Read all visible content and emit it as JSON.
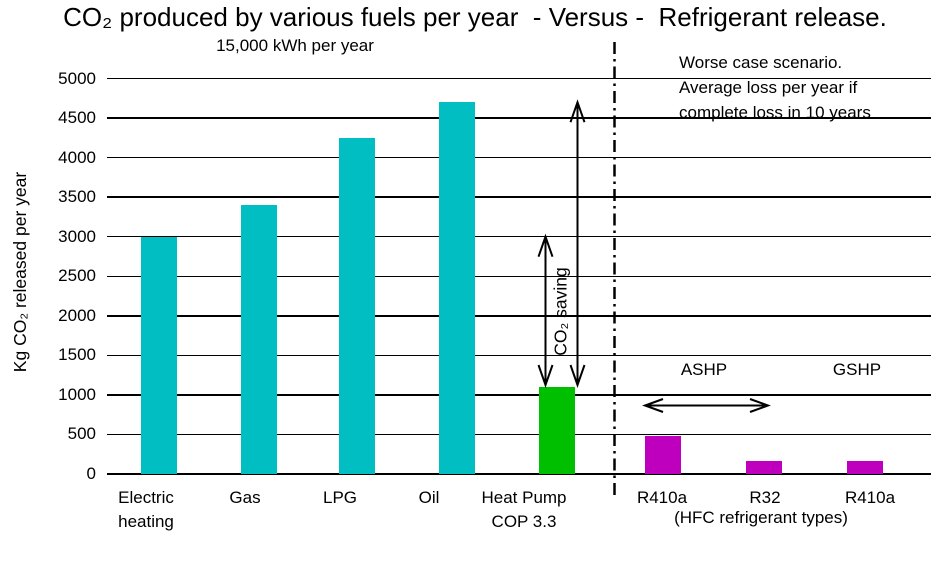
{
  "header": {
    "title": "CO₂ produced by various fuels per year  - Versus -  Refrigerant release.",
    "subtitle": "15,000 kWh per year"
  },
  "y_axis": {
    "label": "Kg CO₂ released per year"
  },
  "annotations": {
    "worse_case_lines": [
      "Worse case scenario.",
      "Average loss per year if",
      "complete loss in 10 years"
    ],
    "co2_saving_label": "CO₂ saving",
    "ashp_label": "ASHP",
    "gshp_label": "GSHP",
    "hfc_note": "(HFC refrigerant types)",
    "co2_saving_arrows": [
      {
        "from_value": 3000,
        "to_value": 1100
      },
      {
        "from_value": 4700,
        "to_value": 1100
      }
    ]
  },
  "chart_data": {
    "type": "bar",
    "title": "CO₂ produced by various fuels per year - Versus - Refrigerant release.",
    "subtitle": "15,000 kWh per year",
    "ylabel": "Kg CO₂ released per year",
    "ylim": [
      0,
      5000
    ],
    "ytick_step": 500,
    "grid": true,
    "categories": [
      "Electric heating",
      "Gas",
      "LPG",
      "Oil",
      "Heat Pump COP 3.3",
      "R410a",
      "R32",
      "R410a"
    ],
    "category_label_lines": [
      [
        "Electric",
        "heating"
      ],
      [
        "Gas"
      ],
      [
        "LPG"
      ],
      [
        "Oil"
      ],
      [
        "Heat Pump",
        "COP 3.3"
      ],
      [
        "R410a"
      ],
      [
        "R32"
      ],
      [
        "R410a"
      ]
    ],
    "values": [
      3000,
      3400,
      4250,
      4700,
      1100,
      480,
      160,
      170
    ],
    "bar_colors": [
      "#00BEC1",
      "#00BEC1",
      "#00BEC1",
      "#00BEC1",
      "#00BE00",
      "#BE00BE",
      "#BE00BE",
      "#BE00BE"
    ],
    "left_section_label": "fuels (15,000 kWh per year)",
    "right_section_label": "refrigerant release (ASHP: R410a, R32 / GSHP: R410a)",
    "divider_after_index": 4
  }
}
